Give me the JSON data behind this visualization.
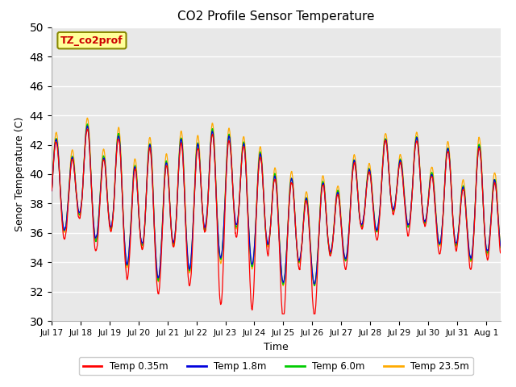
{
  "title": "CO2 Profile Sensor Temperature",
  "xlabel": "Time",
  "ylabel": "Senor Temperature (C)",
  "ylim": [
    30,
    50
  ],
  "yticks": [
    30,
    32,
    34,
    36,
    38,
    40,
    42,
    44,
    46,
    48,
    50
  ],
  "plot_bg": "#e8e8e8",
  "fig_bg": "#ffffff",
  "colors": {
    "Temp 0.35m": "#ff0000",
    "Temp 1.8m": "#0000dd",
    "Temp 6.0m": "#00cc00",
    "Temp 23.5m": "#ffaa00"
  },
  "legend_label": "TZ_co2prof",
  "xtick_labels": [
    "Jul 17",
    "Jul 18",
    "Jul 19",
    "Jul 20",
    "Jul 21",
    "Jul 22",
    "Jul 23",
    "Jul 24",
    "Jul 25",
    "Jul 26",
    "Jul 27",
    "Jul 28",
    "Jul 29",
    "Jul 30",
    "Jul 31",
    "Aug 1"
  ],
  "annotation_box_color": "#ffff99",
  "annotation_text_color": "#cc0000",
  "annotation_edge_color": "#888800"
}
